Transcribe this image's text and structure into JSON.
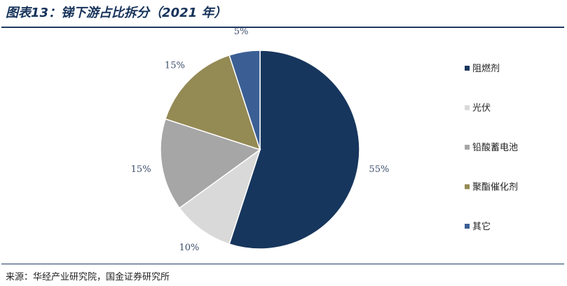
{
  "header": {
    "title": "图表13：锑下游占比拆分（2021 年）"
  },
  "footer": {
    "source": "来源：华经产业研究院，国金证券研究所"
  },
  "chart_data": {
    "type": "pie",
    "title": "图表13：锑下游占比拆分（2021 年）",
    "slices": [
      {
        "label": "阻燃剂",
        "value": 55,
        "display": "55%",
        "color": "#17365d"
      },
      {
        "label": "光伏",
        "value": 10,
        "display": "10%",
        "color": "#d9d9d9"
      },
      {
        "label": "铅酸蓄电池",
        "value": 15,
        "display": "15%",
        "color": "#a6a6a6"
      },
      {
        "label": "聚酯催化剂",
        "value": 15,
        "display": "15%",
        "color": "#948a54"
      },
      {
        "label": "其它",
        "value": 5,
        "display": "5%",
        "color": "#3b5f94"
      }
    ],
    "legend_position": "right"
  }
}
